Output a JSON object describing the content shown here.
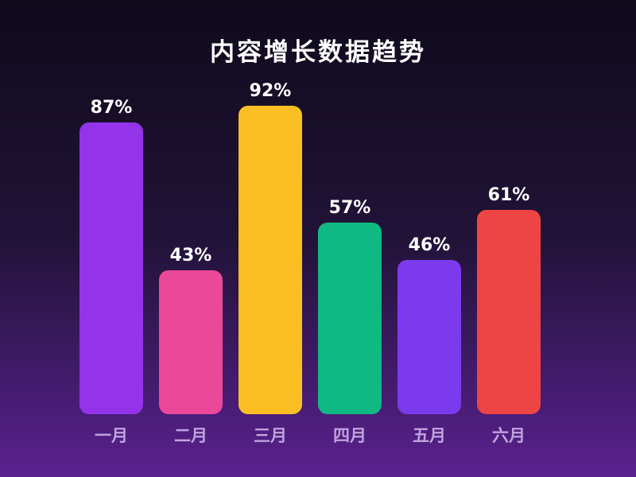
{
  "title": "内容增长数据趋势",
  "chart_data": {
    "type": "bar",
    "title": "内容增长数据趋势",
    "categories": [
      "一月",
      "二月",
      "三月",
      "四月",
      "五月",
      "六月"
    ],
    "values": [
      87,
      43,
      92,
      57,
      46,
      61
    ],
    "value_labels": [
      "87%",
      "43%",
      "92%",
      "57%",
      "46%",
      "61%"
    ],
    "bar_colors": [
      "#9333EA",
      "#EC4899",
      "#FBBF24",
      "#10B981",
      "#7C3AED",
      "#EF4444"
    ],
    "xlabel": "",
    "ylabel": "",
    "ylim": [
      0,
      100
    ],
    "grid": false,
    "legend": false,
    "axes_visible": false,
    "value_label_color": "#FFFFFF",
    "category_label_color": "#C0A3DE",
    "background_gradient": [
      "#0F0A1C",
      "#211338",
      "#5A2190"
    ]
  }
}
